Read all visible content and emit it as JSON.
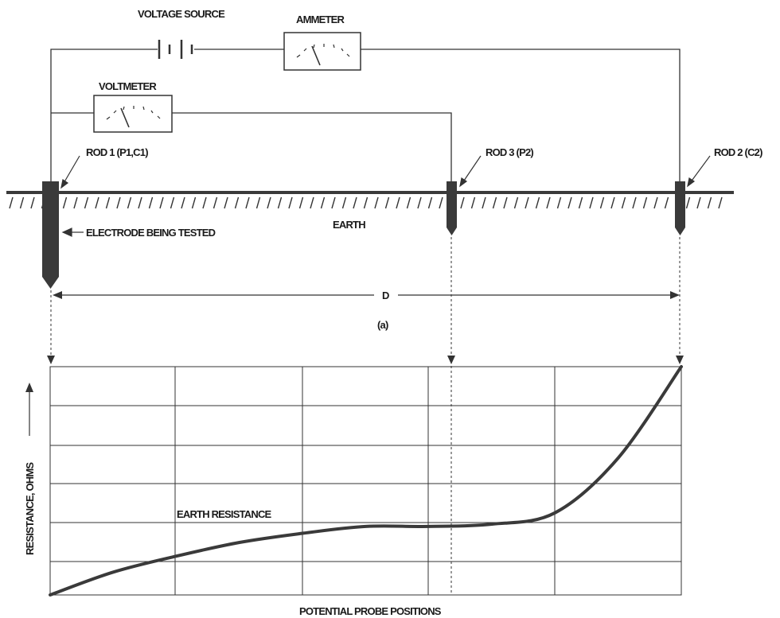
{
  "labels": {
    "voltage_source": "VOLTAGE SOURCE",
    "ammeter": "AMMETER",
    "voltmeter": "VOLTMETER",
    "rod1": "ROD 1 (P1,C1)",
    "rod3": "ROD 3 (P2)",
    "rod2": "ROD 2 (C2)",
    "electrode": "ELECTRODE BEING TESTED",
    "earth": "EARTH",
    "distance": "D",
    "subfigure": "(a)",
    "curve": "EARTH RESISTANCE",
    "y_axis": "RESISTANCE, OHMS",
    "x_axis": "POTENTIAL PROBE POSITIONS"
  },
  "chart_data": {
    "type": "line",
    "xlabel": "POTENTIAL PROBE POSITIONS",
    "ylabel": "RESISTANCE, OHMS",
    "grid": true,
    "series": [
      {
        "name": "EARTH RESISTANCE",
        "x": [
          0,
          0.1,
          0.2,
          0.3,
          0.4,
          0.5,
          0.6,
          0.7,
          0.8,
          0.9,
          1.0
        ],
        "y": [
          0,
          0.1,
          0.17,
          0.23,
          0.27,
          0.3,
          0.3,
          0.31,
          0.36,
          0.6,
          1.0
        ]
      }
    ]
  }
}
